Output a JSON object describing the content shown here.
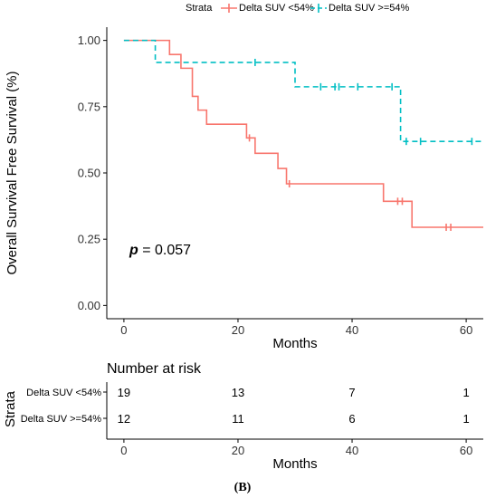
{
  "chart_data": {
    "type": "line",
    "subtype": "kaplan-meier",
    "title": "",
    "xlabel": "Months",
    "ylabel": "Overall Survival Free Survival (%)",
    "xlim": [
      -3,
      63
    ],
    "ylim": [
      -0.05,
      1.05
    ],
    "xticks": [
      0,
      20,
      40,
      60
    ],
    "xtick_labels": [
      "0",
      "20",
      "40",
      "60"
    ],
    "yticks": [
      0,
      0.25,
      0.5,
      0.75,
      1.0
    ],
    "ytick_labels": [
      "0.00",
      "0.25",
      "0.50",
      "0.75",
      "1.00"
    ],
    "grid": false,
    "legend": {
      "title": "Strata",
      "position": "top",
      "entries": [
        "Delta SUV <54%",
        "Delta SUV >=54%"
      ]
    },
    "annotation": {
      "p_symbol": "p",
      "p_text": " = 0.057",
      "x": 1.5,
      "y": 0.19
    },
    "series": [
      {
        "name": "Delta SUV <54%",
        "color": "#f8766d",
        "dash": false,
        "steps": [
          [
            0,
            1.0
          ],
          [
            8,
            0.947
          ],
          [
            10,
            0.895
          ],
          [
            12,
            0.789
          ],
          [
            13,
            0.737
          ],
          [
            14.5,
            0.684
          ],
          [
            21.5,
            0.632
          ],
          [
            23,
            0.574
          ],
          [
            27,
            0.517
          ],
          [
            28.5,
            0.459
          ],
          [
            45.5,
            0.393
          ],
          [
            50.5,
            0.295
          ],
          [
            63,
            0.295
          ]
        ],
        "censors": [
          [
            22,
            0.632
          ],
          [
            29,
            0.459
          ],
          [
            48,
            0.393
          ],
          [
            48.8,
            0.393
          ],
          [
            56.5,
            0.295
          ],
          [
            57.3,
            0.295
          ]
        ]
      },
      {
        "name": "Delta SUV >=54%",
        "color": "#00bfc4",
        "dash": true,
        "steps": [
          [
            0,
            1.0
          ],
          [
            5.5,
            0.917
          ],
          [
            30,
            0.825
          ],
          [
            48.5,
            0.619
          ],
          [
            63,
            0.619
          ]
        ],
        "censors": [
          [
            23,
            0.917
          ],
          [
            34.5,
            0.825
          ],
          [
            37,
            0.825
          ],
          [
            37.7,
            0.825
          ],
          [
            41,
            0.825
          ],
          [
            47,
            0.825
          ],
          [
            49.5,
            0.619
          ],
          [
            52,
            0.619
          ],
          [
            61,
            0.619
          ]
        ]
      }
    ],
    "risk_table": {
      "title": "Number at risk",
      "ylabel": "Strata",
      "xlabel": "Months",
      "times": [
        0,
        20,
        40,
        60
      ],
      "time_labels": [
        "0",
        "20",
        "40",
        "60"
      ],
      "rows": [
        {
          "label": "Delta SUV <54%",
          "counts": [
            "19",
            "13",
            "7",
            "1"
          ]
        },
        {
          "label": "Delta SUV >=54%",
          "counts": [
            "12",
            "11",
            "6",
            "1"
          ]
        }
      ]
    }
  },
  "panel_label": "(B)"
}
